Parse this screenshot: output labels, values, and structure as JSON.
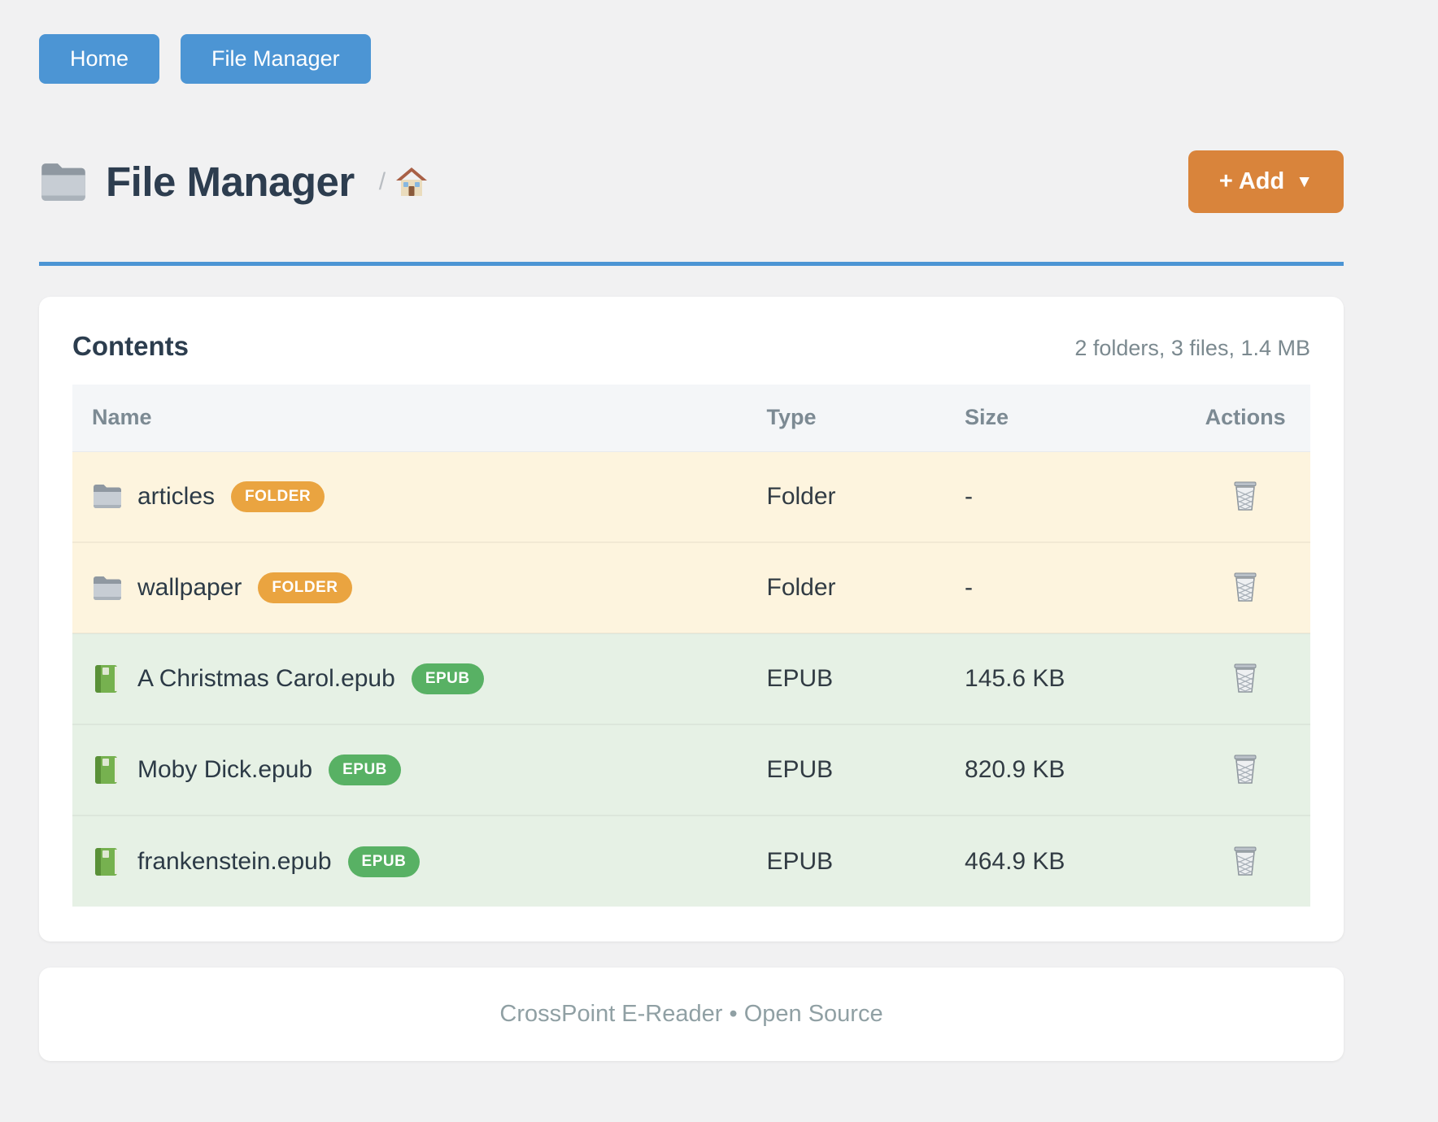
{
  "nav": {
    "items": [
      {
        "label": "Home"
      },
      {
        "label": "File Manager"
      }
    ]
  },
  "header": {
    "icon": "folder-icon",
    "title": "File Manager",
    "breadcrumb_separator": "/",
    "breadcrumb_home_icon": "house-icon",
    "add_button": {
      "label": "+ Add",
      "caret": "▼"
    }
  },
  "card": {
    "title": "Contents",
    "summary": "2 folders, 3 files, 1.4 MB",
    "table": {
      "columns": [
        "Name",
        "Type",
        "Size",
        "Actions"
      ],
      "rows": [
        {
          "icon": "folder-icon",
          "name": "articles",
          "badge": "FOLDER",
          "badge_type": "folder",
          "type": "Folder",
          "size": "-",
          "action_icon": "trash-icon",
          "row_kind": "folder"
        },
        {
          "icon": "folder-icon",
          "name": "wallpaper",
          "badge": "FOLDER",
          "badge_type": "folder",
          "type": "Folder",
          "size": "-",
          "action_icon": "trash-icon",
          "row_kind": "folder"
        },
        {
          "icon": "book-icon",
          "name": "A Christmas Carol.epub",
          "badge": "EPUB",
          "badge_type": "epub",
          "type": "EPUB",
          "size": "145.6 KB",
          "action_icon": "trash-icon",
          "row_kind": "epub"
        },
        {
          "icon": "book-icon",
          "name": "Moby Dick.epub",
          "badge": "EPUB",
          "badge_type": "epub",
          "type": "EPUB",
          "size": "820.9 KB",
          "action_icon": "trash-icon",
          "row_kind": "epub"
        },
        {
          "icon": "book-icon",
          "name": "frankenstein.epub",
          "badge": "EPUB",
          "badge_type": "epub",
          "type": "EPUB",
          "size": "464.9 KB",
          "action_icon": "trash-icon",
          "row_kind": "epub"
        }
      ]
    }
  },
  "footer": {
    "text": "CrossPoint E-Reader • Open Source"
  },
  "colors": {
    "primary_blue": "#4c95d4",
    "accent_orange": "#d9843b",
    "badge_orange": "#eaa440",
    "badge_green": "#58b164",
    "row_folder_bg": "#fdf4de",
    "row_epub_bg": "#e6f1e5",
    "page_bg": "#f1f1f2",
    "heading_text": "#2d3d4f",
    "muted_text": "#7b898f"
  }
}
